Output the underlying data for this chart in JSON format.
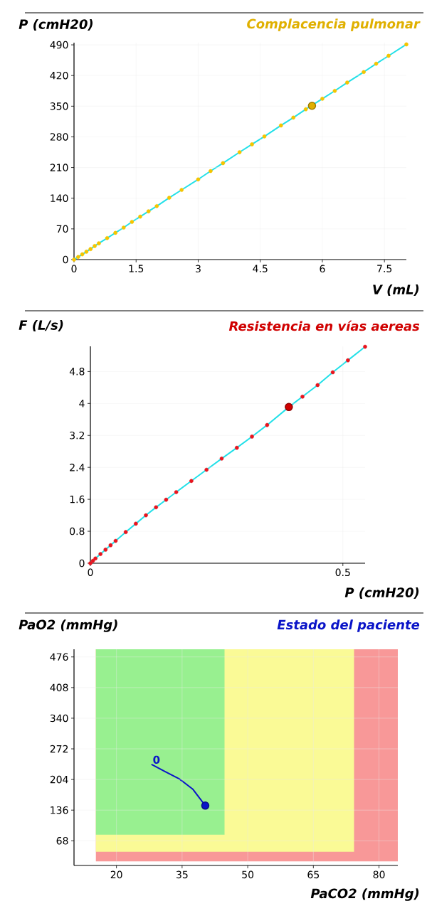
{
  "chart_data": [
    {
      "type": "scatter",
      "title": "Complacencia pulmonar",
      "xlabel": "V (mL)",
      "ylabel": "P (cmH20)",
      "xlim": [
        0,
        8.03
      ],
      "ylim": [
        0,
        495
      ],
      "xticks": [
        0,
        1.5,
        3,
        4.5,
        6,
        7.5
      ],
      "yticks": [
        0,
        70,
        140,
        210,
        280,
        350,
        420,
        490
      ],
      "grid": true,
      "series": [
        {
          "type": "line",
          "color": "#22e0e8",
          "x": [
            0,
            0.1,
            0.2,
            0.3,
            0.4,
            0.5,
            0.6,
            0.8,
            1.0,
            1.2,
            1.4,
            1.6,
            1.8,
            2.0,
            2.3,
            2.6,
            3.0,
            3.3,
            3.6,
            4.0,
            4.3,
            4.6,
            5.0,
            5.3,
            5.6,
            6.0,
            6.3,
            6.6,
            7.0,
            7.3,
            7.6,
            8.03
          ],
          "values": [
            0,
            6,
            12,
            18,
            24,
            31,
            37,
            49,
            61,
            73,
            86,
            98,
            110,
            122,
            141,
            159,
            183,
            202,
            220,
            245,
            263,
            281,
            306,
            324,
            343,
            367,
            385,
            404,
            428,
            447,
            465,
            491
          ]
        },
        {
          "color": "#f5c400",
          "x": [
            0,
            0.1,
            0.2,
            0.3,
            0.4,
            0.5,
            0.6,
            0.8,
            1.0,
            1.2,
            1.4,
            1.6,
            1.8,
            2.0,
            2.3,
            2.6,
            3.0,
            3.3,
            3.6,
            4.0,
            4.3,
            4.6,
            5.0,
            5.3,
            5.6,
            6.0,
            6.3,
            6.6,
            7.0,
            7.3,
            7.6,
            8.03
          ],
          "values": [
            0,
            6,
            12,
            18,
            24,
            31,
            37,
            49,
            61,
            73,
            86,
            98,
            110,
            122,
            141,
            159,
            183,
            202,
            220,
            245,
            263,
            281,
            306,
            324,
            343,
            367,
            385,
            404,
            428,
            447,
            465,
            491
          ]
        },
        {
          "color": "#e0b000",
          "x": [
            5.75
          ],
          "values": [
            351
          ]
        }
      ]
    },
    {
      "type": "scatter",
      "title": "Resistencia en vías aereas",
      "xlabel": "P (cmH20)",
      "ylabel": "F (L/s)",
      "xlim": [
        0,
        0.544
      ],
      "ylim": [
        0,
        5.43
      ],
      "xticks": [
        0,
        0.5
      ],
      "yticks": [
        0,
        0.8,
        1.6,
        2.4,
        3.2,
        4,
        4.8
      ],
      "grid": true,
      "series": [
        {
          "type": "line",
          "color": "#22e0e8",
          "x": [
            0,
            0.005,
            0.01,
            0.02,
            0.03,
            0.04,
            0.05,
            0.07,
            0.09,
            0.11,
            0.13,
            0.15,
            0.17,
            0.2,
            0.23,
            0.26,
            0.29,
            0.32,
            0.35,
            0.393,
            0.42,
            0.45,
            0.48,
            0.51,
            0.544
          ],
          "values": [
            0,
            0.06,
            0.12,
            0.23,
            0.34,
            0.45,
            0.56,
            0.78,
            0.99,
            1.2,
            1.4,
            1.59,
            1.78,
            2.06,
            2.34,
            2.62,
            2.89,
            3.17,
            3.46,
            3.91,
            4.17,
            4.46,
            4.78,
            5.08,
            5.42
          ]
        },
        {
          "color": "#e8141e",
          "x": [
            0,
            0.005,
            0.01,
            0.02,
            0.03,
            0.04,
            0.05,
            0.07,
            0.09,
            0.11,
            0.13,
            0.15,
            0.17,
            0.2,
            0.23,
            0.26,
            0.29,
            0.32,
            0.35,
            0.42,
            0.45,
            0.48,
            0.51,
            0.544
          ],
          "values": [
            0,
            0.06,
            0.12,
            0.23,
            0.34,
            0.45,
            0.56,
            0.78,
            0.99,
            1.2,
            1.4,
            1.59,
            1.78,
            2.06,
            2.34,
            2.62,
            2.89,
            3.17,
            3.46,
            4.17,
            4.46,
            4.78,
            5.08,
            5.42
          ]
        },
        {
          "color": "#d00000",
          "x": [
            0.393
          ],
          "values": [
            3.91
          ]
        }
      ]
    },
    {
      "type": "line",
      "title": "Estado del paciente",
      "xlabel": "PaCO2 (mmHg)",
      "ylabel": "PaO2 (mmHg)",
      "xlim": [
        10.3,
        84.3
      ],
      "ylim": [
        13.2,
        493
      ],
      "xticks": [
        20,
        35,
        50,
        65,
        80
      ],
      "yticks": [
        68,
        136,
        204,
        272,
        340,
        408,
        476
      ],
      "grid": true,
      "annotations": [
        {
          "text": "0",
          "x": 28.1,
          "y": 237
        }
      ],
      "series": [
        {
          "color": "#f89898",
          "x": [
            15.3,
            84.3
          ],
          "lower": [
            22.3,
            22.3
          ],
          "upper": [
            493,
            493
          ],
          "values": [
            null,
            null
          ]
        },
        {
          "color": "#fafa96",
          "x": [
            15.3,
            74.3
          ],
          "lower": [
            43.6,
            43.6
          ],
          "upper": [
            493,
            493
          ],
          "values": [
            null,
            null
          ]
        },
        {
          "color": "#98f090",
          "x": [
            15.3,
            44.7
          ],
          "lower": [
            81.4,
            81.4
          ],
          "upper": [
            493,
            493
          ],
          "values": [
            null,
            null
          ]
        },
        {
          "color": "#0a14c8",
          "x": [
            28.1,
            31,
            34.4,
            37.5,
            40.3
          ],
          "values": [
            237,
            222,
            205,
            182,
            146
          ]
        },
        {
          "type": "scatter",
          "color": "#0a14c8",
          "x": [
            40.3
          ],
          "values": [
            146
          ]
        }
      ]
    }
  ]
}
